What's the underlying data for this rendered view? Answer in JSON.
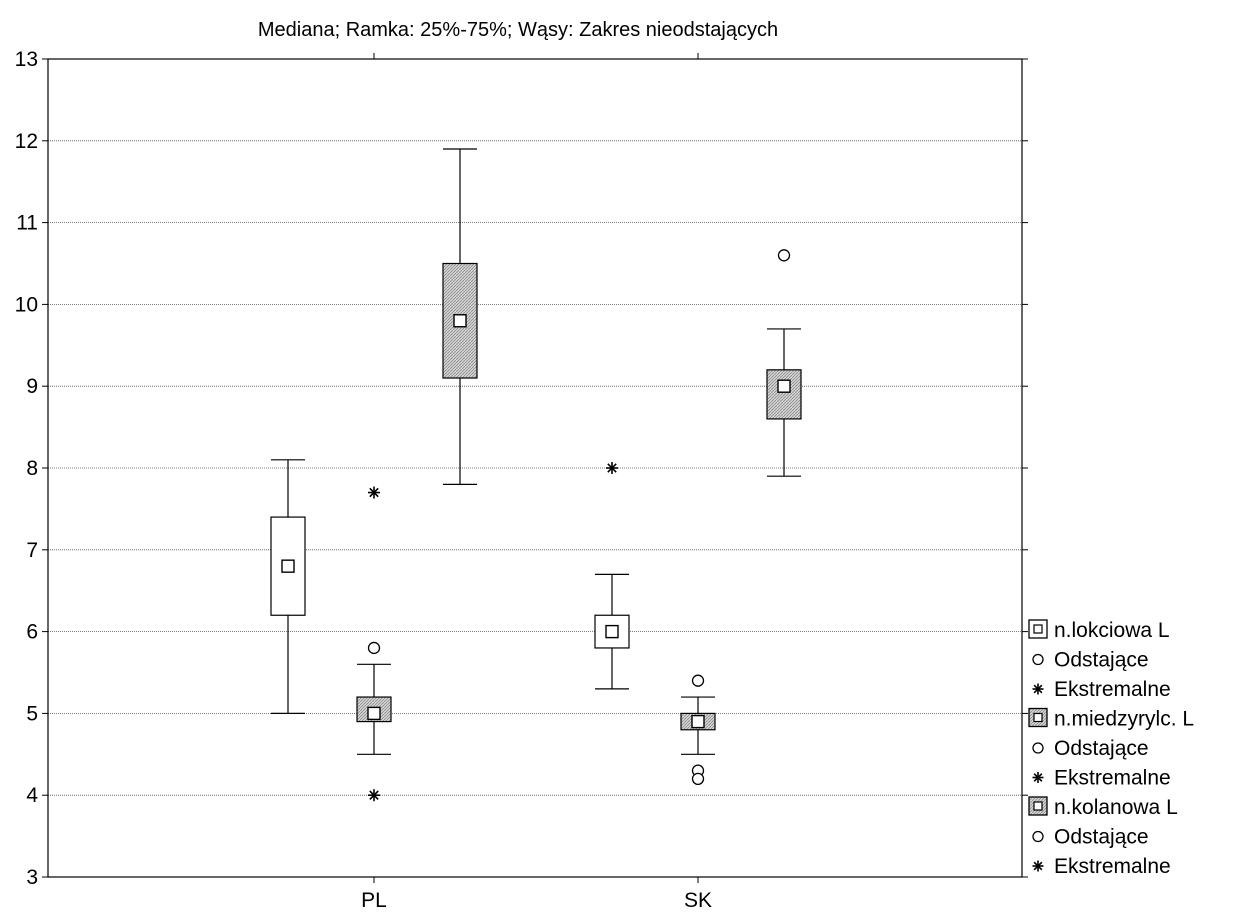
{
  "chart_data": {
    "type": "boxplot",
    "subtitle": "Mediana; Ramka: 25%-75%; Wąsy: Zakres nieodstających",
    "categories": [
      "PL",
      "SK"
    ],
    "ylim": [
      3,
      13
    ],
    "yticks": [
      3,
      4,
      5,
      6,
      7,
      8,
      9,
      10,
      11,
      12,
      13
    ],
    "grid": true,
    "legend_position": "right",
    "series": [
      {
        "name": "n.lokciowa L",
        "fill": "#ffffff",
        "boxes": [
          {
            "category": "PL",
            "median": 6.8,
            "q1": 6.2,
            "q3": 7.4,
            "whisker_low": 5.0,
            "whisker_high": 8.1,
            "outliers": [],
            "extremes": []
          },
          {
            "category": "SK",
            "median": 6.0,
            "q1": 5.8,
            "q3": 6.2,
            "whisker_low": 5.3,
            "whisker_high": 6.7,
            "outliers": [],
            "extremes": [
              8.0
            ]
          }
        ]
      },
      {
        "name": "n.miedzyrylc. L",
        "fill": "#c8c8c8",
        "boxes": [
          {
            "category": "PL",
            "median": 5.0,
            "q1": 4.9,
            "q3": 5.2,
            "whisker_low": 4.5,
            "whisker_high": 5.6,
            "outliers": [
              5.8
            ],
            "extremes": [
              7.7,
              4.0
            ]
          },
          {
            "category": "SK",
            "median": 4.9,
            "q1": 4.8,
            "q3": 5.0,
            "whisker_low": 4.5,
            "whisker_high": 5.2,
            "outliers": [
              5.4,
              4.3,
              4.2
            ],
            "extremes": []
          }
        ]
      },
      {
        "name": "n.kolanowa L",
        "fill": "#b4b4b4",
        "boxes": [
          {
            "category": "PL",
            "median": 9.8,
            "q1": 9.1,
            "q3": 10.5,
            "whisker_low": 7.8,
            "whisker_high": 11.9,
            "outliers": [],
            "extremes": []
          },
          {
            "category": "SK",
            "median": 9.0,
            "q1": 8.6,
            "q3": 9.2,
            "whisker_low": 7.9,
            "whisker_high": 9.7,
            "outliers": [
              10.6
            ],
            "extremes": []
          }
        ]
      }
    ],
    "legend": [
      {
        "label": "n.lokciowa L",
        "symbol": "box",
        "fill": "#ffffff"
      },
      {
        "label": "Odstające",
        "symbol": "circle"
      },
      {
        "label": "Ekstremalne",
        "symbol": "asterisk"
      },
      {
        "label": "n.miedzyrylc. L",
        "symbol": "box",
        "fill": "#c8c8c8"
      },
      {
        "label": "Odstające",
        "symbol": "circle"
      },
      {
        "label": "Ekstremalne",
        "symbol": "asterisk"
      },
      {
        "label": "n.kolanowa L",
        "symbol": "box",
        "fill": "#b4b4b4"
      },
      {
        "label": "Odstające",
        "symbol": "circle"
      },
      {
        "label": "Ekstremalne",
        "symbol": "asterisk"
      }
    ]
  }
}
